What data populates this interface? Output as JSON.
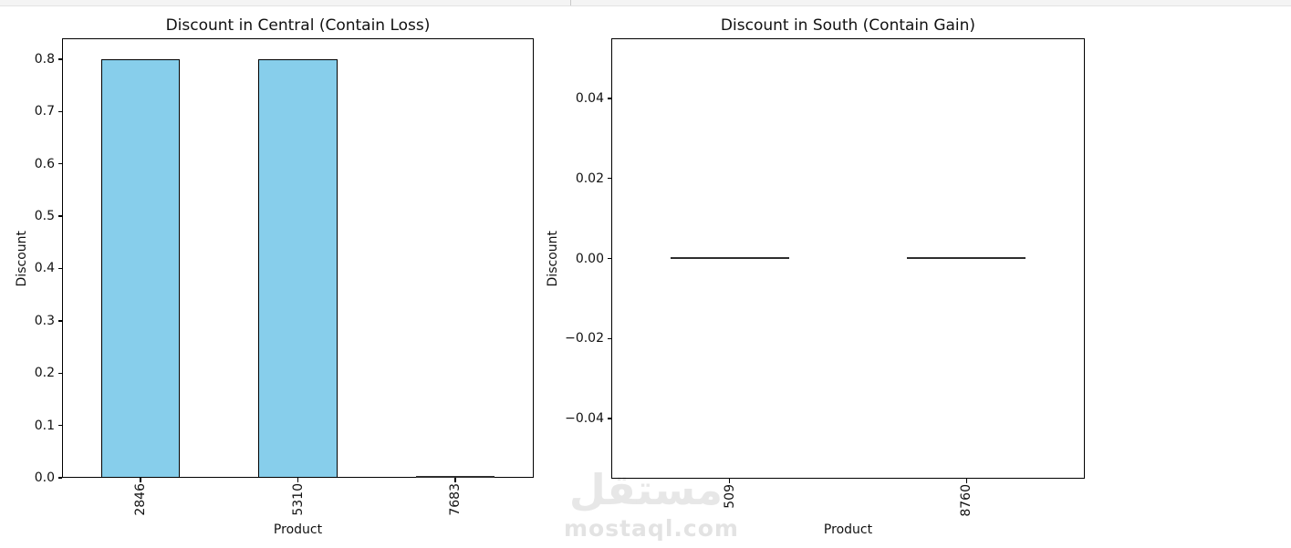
{
  "watermark": {
    "arabic": "مستقل",
    "domain": "mostaql.com"
  },
  "chart_data": [
    {
      "type": "bar",
      "title": "Discount in Central (Contain Loss)",
      "xlabel": "Product",
      "ylabel": "Discount",
      "categories": [
        "2846",
        "5310",
        "7683"
      ],
      "values": [
        0.8,
        0.8,
        0.0
      ],
      "ylim": [
        0,
        0.84
      ],
      "yticks": [
        {
          "v": 0.0,
          "label": "0.0"
        },
        {
          "v": 0.1,
          "label": "0.1"
        },
        {
          "v": 0.2,
          "label": "0.2"
        },
        {
          "v": 0.3,
          "label": "0.3"
        },
        {
          "v": 0.4,
          "label": "0.4"
        },
        {
          "v": 0.5,
          "label": "0.5"
        },
        {
          "v": 0.6,
          "label": "0.6"
        },
        {
          "v": 0.7,
          "label": "0.7"
        },
        {
          "v": 0.8,
          "label": "0.8"
        }
      ],
      "x_tick_rotation": 90,
      "bar_color": "#87ceeb",
      "bar_edge_color": "#000000",
      "bar_rel_width": 0.5,
      "grid": false,
      "legend": null
    },
    {
      "type": "bar",
      "title": "Discount in South (Contain Gain)",
      "xlabel": "Product",
      "ylabel": "Discount",
      "categories": [
        "509",
        "8760"
      ],
      "values": [
        0.0,
        0.0
      ],
      "ylim": [
        -0.055,
        0.055
      ],
      "yticks": [
        {
          "v": -0.04,
          "label": "−0.04"
        },
        {
          "v": -0.02,
          "label": "−0.02"
        },
        {
          "v": 0.0,
          "label": "0.00"
        },
        {
          "v": 0.02,
          "label": "0.02"
        },
        {
          "v": 0.04,
          "label": "0.04"
        }
      ],
      "x_tick_rotation": 90,
      "bar_color": "#87ceeb",
      "bar_edge_color": "#000000",
      "bar_rel_width": 0.5,
      "grid": false,
      "legend": null
    }
  ]
}
